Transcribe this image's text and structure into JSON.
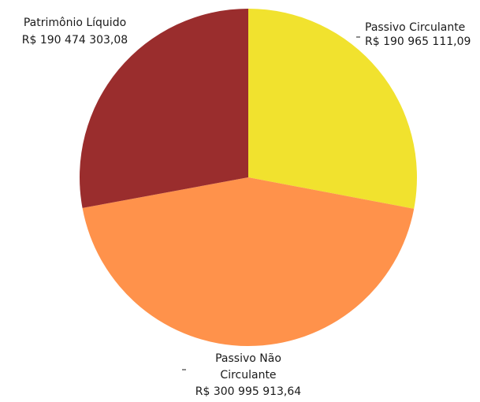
{
  "chart_data": {
    "type": "pie",
    "title": "",
    "slices": [
      {
        "name": "Passivo Circulante",
        "value_text": "R$ 190 965 111,09",
        "value": 190965111.09,
        "color": "#f1e22e"
      },
      {
        "name": "Passivo Não Circulante",
        "name_lines": [
          "Passivo Não",
          "Circulante"
        ],
        "value_text": "R$ 300 995 913,64",
        "value": 300995913.64,
        "color": "#ff924b"
      },
      {
        "name": "Patrimônio Líquido",
        "value_text": "R$ 190 474 303,08",
        "value": 190474303.08,
        "color": "#9a2d2d"
      }
    ],
    "start_angle_deg": 0,
    "direction": "clockwise"
  }
}
